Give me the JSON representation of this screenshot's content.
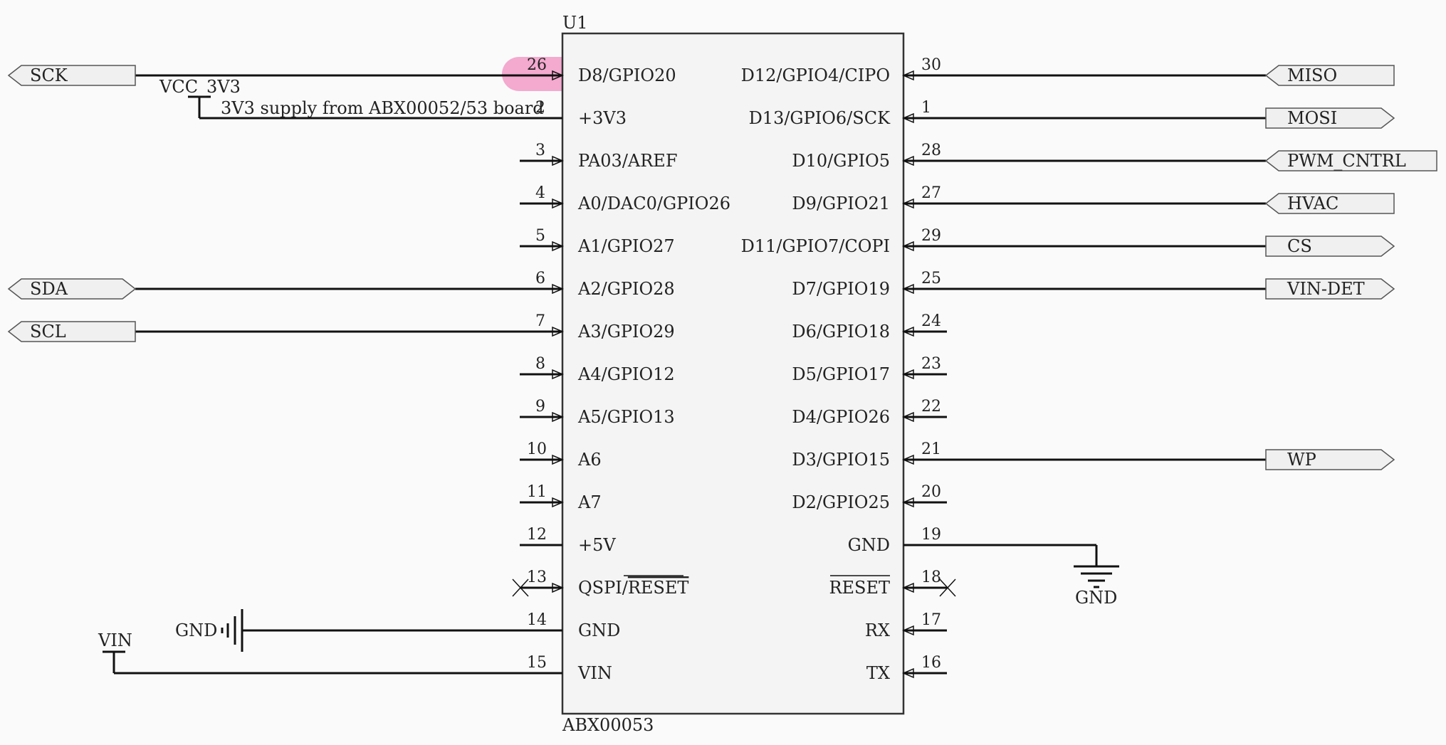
{
  "component": {
    "ref": "U1",
    "part": "ABX00053",
    "left_pins": [
      {
        "num": "26",
        "name": "D8/GPIO20"
      },
      {
        "num": "2",
        "name": "+3V3"
      },
      {
        "num": "3",
        "name": "PA03/AREF"
      },
      {
        "num": "4",
        "name": "A0/DAC0/GPIO26"
      },
      {
        "num": "5",
        "name": "A1/GPIO27"
      },
      {
        "num": "6",
        "name": "A2/GPIO28"
      },
      {
        "num": "7",
        "name": "A3/GPIO29"
      },
      {
        "num": "8",
        "name": "A4/GPIO12"
      },
      {
        "num": "9",
        "name": "A5/GPIO13"
      },
      {
        "num": "10",
        "name": "A6"
      },
      {
        "num": "11",
        "name": "A7"
      },
      {
        "num": "12",
        "name": "+5V"
      },
      {
        "num": "13",
        "name": "QSPI/",
        "overline": "RESET"
      },
      {
        "num": "14",
        "name": "GND"
      },
      {
        "num": "15",
        "name": "VIN"
      }
    ],
    "right_pins": [
      {
        "num": "30",
        "name": "D12/GPIO4/CIPO"
      },
      {
        "num": "1",
        "name": "D13/GPIO6/SCK"
      },
      {
        "num": "28",
        "name": "D10/GPIO5"
      },
      {
        "num": "27",
        "name": "D9/GPIO21"
      },
      {
        "num": "29",
        "name": "D11/GPIO7/COPI"
      },
      {
        "num": "25",
        "name": "D7/GPIO19"
      },
      {
        "num": "24",
        "name": "D6/GPIO18"
      },
      {
        "num": "23",
        "name": "D5/GPIO17"
      },
      {
        "num": "22",
        "name": "D4/GPIO26"
      },
      {
        "num": "21",
        "name": "D3/GPIO15"
      },
      {
        "num": "20",
        "name": "D2/GPIO25"
      },
      {
        "num": "19",
        "name": "GND"
      },
      {
        "num": "18",
        "name": "",
        "overline": "RESET"
      },
      {
        "num": "17",
        "name": "RX"
      },
      {
        "num": "16",
        "name": "TX"
      }
    ]
  },
  "left_ports": {
    "sck": "SCK",
    "sda": "SDA",
    "scl": "SCL"
  },
  "right_ports": {
    "miso": "MISO",
    "mosi": "MOSI",
    "pwm": "PWM_CNTRL",
    "hvac": "HVAC",
    "cs": "CS",
    "vindet": "VIN-DET",
    "wp": "WP"
  },
  "power": {
    "vcc_label": "VCC_3V3",
    "vcc_note": "3V3 supply from ABX00052/53 board",
    "gnd_left": "GND",
    "gnd_right": "GND",
    "vin_label": "VIN"
  },
  "highlight_color": "#f4a9cf"
}
